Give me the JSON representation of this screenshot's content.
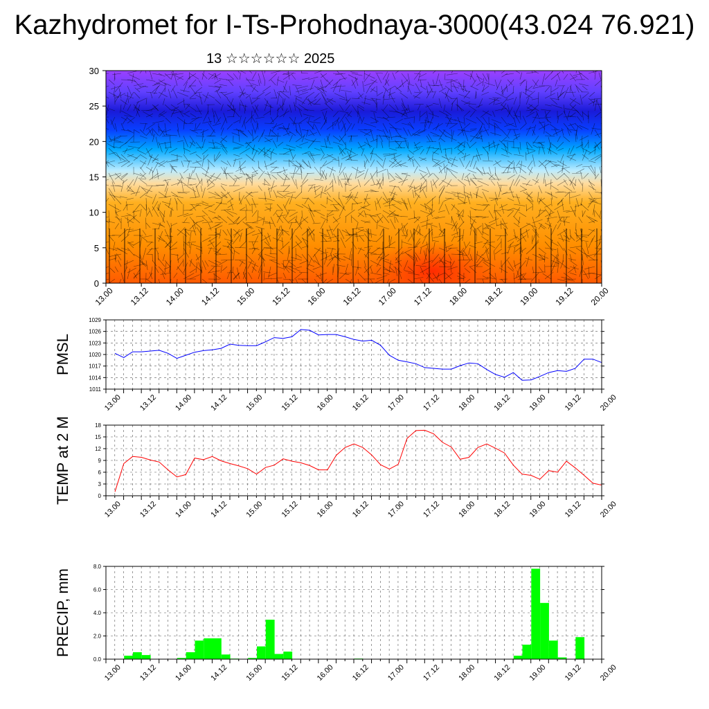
{
  "title": "Kazhydromet for I-Ts-Prohodnaya-3000(43.024 76.921)",
  "subtitle": "13 ☆☆☆☆☆☆ 2025",
  "colors": {
    "pmsl": "#0000ff",
    "temp": "#ff0000",
    "precip": "#00ff00",
    "text": "#000000"
  },
  "chart_data": [
    {
      "type": "heatmap",
      "ylim": [
        0,
        30
      ],
      "y_ticks": [
        "0",
        "5",
        "10",
        "15",
        "20",
        "25",
        "30"
      ],
      "x_ticks": [
        "13.00",
        "13.12",
        "14.00",
        "14.12",
        "15.00",
        "15.12",
        "16.00",
        "16.12",
        "17.00",
        "17.12",
        "18.00",
        "18.12",
        "19.00",
        "19.12",
        "20.00"
      ],
      "xlim": [
        0,
        14
      ],
      "overlay": "wind-barbs",
      "colormap": [
        "#ff3000",
        "#ff8c00",
        "#ffb020",
        "#ffe0a0",
        "#a6e8ff",
        "#00aaff",
        "#1030ff",
        "#2010d0",
        "#6a3cff",
        "#9a40ff"
      ]
    },
    {
      "type": "line",
      "ylabel": "PMSL",
      "ylim": [
        1011,
        1029
      ],
      "y_ticks": [
        "1011",
        "1014",
        "1017",
        "1020",
        "1023",
        "1026",
        "1029"
      ],
      "x_ticks": [
        "13.00",
        "13.12",
        "14.00",
        "14.12",
        "15.00",
        "15.12",
        "16.00",
        "16.12",
        "17.00",
        "17.12",
        "18.00",
        "18.12",
        "19.00",
        "19.12",
        "20.00"
      ],
      "xlim": [
        0,
        14
      ],
      "series": [
        {
          "x": [
            0,
            0.25,
            0.5,
            0.75,
            1,
            1.25,
            1.5,
            1.75,
            2,
            2.25,
            2.5,
            2.75,
            3,
            3.25,
            3.5,
            3.75,
            4,
            4.25,
            4.5,
            4.75,
            5,
            5.25,
            5.5,
            5.75,
            6,
            6.25,
            6.5,
            6.75,
            7,
            7.25,
            7.5,
            7.75,
            8,
            8.25,
            8.5,
            8.75,
            9,
            9.25,
            9.5,
            9.75,
            10,
            10.25,
            10.5,
            10.75,
            11,
            11.25,
            11.5,
            11.75,
            12,
            12.25,
            12.5,
            12.75,
            13,
            13.25,
            13.5,
            13.75,
            14
          ],
          "values": [
            1020.3,
            1019.2,
            1020.7,
            1020.7,
            1020.9,
            1021.1,
            1020.3,
            1019,
            1019.8,
            1020.6,
            1021,
            1021.2,
            1021.6,
            1022.7,
            1022.4,
            1022.3,
            1022.3,
            1023.3,
            1024.4,
            1024.2,
            1024.6,
            1026.5,
            1026.3,
            1025.1,
            1025.2,
            1025.2,
            1024.6,
            1023.9,
            1023.5,
            1023.7,
            1022.4,
            1019.8,
            1018.5,
            1018.1,
            1017.6,
            1016.6,
            1016.4,
            1016.2,
            1016.2,
            1017.1,
            1017.8,
            1017.6,
            1016.1,
            1014.8,
            1014.1,
            1015.3,
            1013.3,
            1013.4,
            1014.3,
            1015.3,
            1015.8,
            1015.6,
            1016.4,
            1018.8,
            1018.8,
            1017.9,
            1018.6
          ]
        }
      ]
    },
    {
      "type": "line",
      "ylabel": "TEMP at 2 M",
      "ylim": [
        0,
        18
      ],
      "y_ticks": [
        "0",
        "3",
        "6",
        "9",
        "12",
        "15",
        "18"
      ],
      "x_ticks": [
        "13.00",
        "13.12",
        "14.00",
        "14.12",
        "15.00",
        "15.12",
        "16.00",
        "16.12",
        "17.00",
        "17.12",
        "18.00",
        "18.12",
        "19.00",
        "19.12",
        "20.00"
      ],
      "xlim": [
        0,
        14
      ],
      "series": [
        {
          "x": [
            0,
            0.25,
            0.5,
            0.75,
            1,
            1.25,
            1.5,
            1.75,
            2,
            2.25,
            2.5,
            2.75,
            3,
            3.25,
            3.5,
            3.75,
            4,
            4.25,
            4.5,
            4.75,
            5,
            5.25,
            5.5,
            5.75,
            6,
            6.25,
            6.5,
            6.75,
            7,
            7.25,
            7.5,
            7.75,
            8,
            8.25,
            8.5,
            8.75,
            9,
            9.25,
            9.5,
            9.75,
            10,
            10.25,
            10.5,
            10.75,
            11,
            11.25,
            11.5,
            11.75,
            12,
            12.25,
            12.5,
            12.75,
            13,
            13.25,
            13.5,
            13.75,
            14
          ],
          "values": [
            1,
            8.2,
            10,
            9.8,
            9.1,
            8.6,
            6.6,
            4.8,
            5.4,
            9.6,
            9.2,
            10,
            8.9,
            8.2,
            7.6,
            6.9,
            5.5,
            7.2,
            7.8,
            9.4,
            8.8,
            8.4,
            7.7,
            6.6,
            6.6,
            10.3,
            12.3,
            13.2,
            12.3,
            10.4,
            7.9,
            6.8,
            8,
            14.6,
            16.6,
            16.7,
            15.8,
            13.6,
            12.4,
            9.3,
            9.8,
            12.3,
            13.2,
            12.1,
            10.9,
            7.8,
            5.5,
            5.2,
            4.2,
            6.4,
            6,
            8.8,
            7.1,
            5.2,
            3.2,
            2.7,
            2.2
          ]
        }
      ]
    },
    {
      "type": "bar",
      "ylabel": "PRECIP, mm",
      "ylim": [
        0,
        8
      ],
      "y_ticks": [
        "0.0",
        "2.0",
        "4.0",
        "6.0",
        "8.0"
      ],
      "x_ticks": [
        "13.00",
        "13.12",
        "14.00",
        "14.12",
        "15.00",
        "15.12",
        "16.00",
        "16.12",
        "17.00",
        "17.12",
        "18.00",
        "18.12",
        "19.00",
        "19.12",
        "20.00"
      ],
      "xlim": [
        0,
        14
      ],
      "bar_width": 0.25,
      "x": [
        0.5,
        0.75,
        1,
        2,
        2.25,
        2.5,
        2.75,
        3,
        3.25,
        3.5,
        4,
        4.25,
        4.5,
        4.75,
        5,
        5.25,
        7,
        11.5,
        11.75,
        12,
        12.25,
        12.5,
        12.75,
        13.25
      ],
      "values": [
        0.3,
        0.6,
        0.35,
        0.1,
        0.6,
        1.6,
        1.8,
        1.8,
        0.4,
        0.05,
        0.1,
        1.1,
        3.4,
        0.45,
        0.65,
        0.02,
        0.05,
        0.3,
        1.25,
        7.8,
        4.85,
        1.6,
        0.15,
        1.9
      ]
    }
  ]
}
